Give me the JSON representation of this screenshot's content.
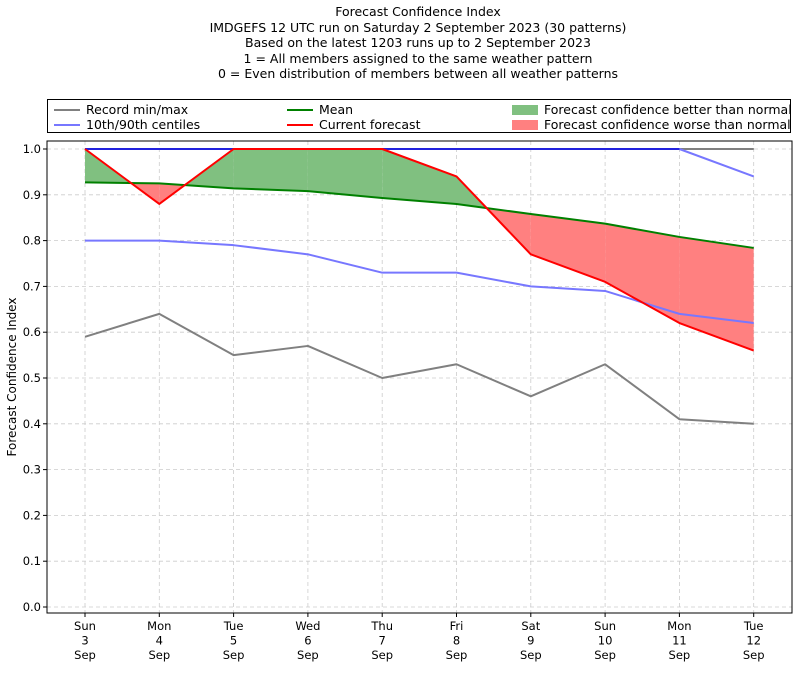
{
  "title_lines": [
    "Forecast Confidence Index",
    "IMDGEFS 12 UTC run on Saturday 2 September 2023 (30 patterns)",
    "Based on the latest 1203 runs up to 2 September 2023",
    "1 = All members assigned to the same weather pattern",
    "0 = Even distribution of members between all weather patterns"
  ],
  "legend": {
    "record": "Record min/max",
    "centiles": "10th/90th centiles",
    "mean": "Mean",
    "current": "Current forecast",
    "better": "Forecast confidence better than normal",
    "worse": "Forecast confidence worse than normal"
  },
  "colors": {
    "record": "#808080",
    "centiles": "#7777ff",
    "centiles_top": "#2222dd",
    "mean": "#008000",
    "current": "#ff0000",
    "better_fill": "#80c080",
    "worse_fill": "#ff8080"
  },
  "chart_data": {
    "type": "line",
    "ylabel": "Forecast Confidence Index",
    "ylim": [
      0,
      1
    ],
    "yticks": [
      "0.0",
      "0.1",
      "0.2",
      "0.3",
      "0.4",
      "0.5",
      "0.6",
      "0.7",
      "0.8",
      "0.9",
      "1.0"
    ],
    "grid": true,
    "legend_position": "top",
    "categories": [
      [
        "Sun",
        "3",
        "Sep"
      ],
      [
        "Mon",
        "4",
        "Sep"
      ],
      [
        "Tue",
        "5",
        "Sep"
      ],
      [
        "Wed",
        "6",
        "Sep"
      ],
      [
        "Thu",
        "7",
        "Sep"
      ],
      [
        "Fri",
        "8",
        "Sep"
      ],
      [
        "Sat",
        "9",
        "Sep"
      ],
      [
        "Sun",
        "10",
        "Sep"
      ],
      [
        "Mon",
        "11",
        "Sep"
      ],
      [
        "Tue",
        "12",
        "Sep"
      ]
    ],
    "series": [
      {
        "name": "Record min/max",
        "role": "record_max",
        "values": [
          1.0,
          1.0,
          1.0,
          1.0,
          1.0,
          1.0,
          1.0,
          1.0,
          1.0,
          1.0
        ]
      },
      {
        "name": "Record min/max",
        "role": "record_min",
        "values": [
          0.59,
          0.64,
          0.55,
          0.57,
          0.5,
          0.53,
          0.46,
          0.53,
          0.41,
          0.4
        ]
      },
      {
        "name": "10th/90th centiles",
        "role": "p90",
        "values": [
          1.0,
          1.0,
          1.0,
          1.0,
          1.0,
          1.0,
          1.0,
          1.0,
          1.0,
          0.94
        ]
      },
      {
        "name": "10th/90th centiles",
        "role": "p10",
        "values": [
          0.8,
          0.8,
          0.79,
          0.77,
          0.73,
          0.73,
          0.7,
          0.69,
          0.64,
          0.62
        ]
      },
      {
        "name": "Mean",
        "role": "mean",
        "values": [
          0.927,
          0.925,
          0.914,
          0.908,
          0.893,
          0.88,
          0.858,
          0.837,
          0.808,
          0.784
        ]
      },
      {
        "name": "Current forecast",
        "role": "current",
        "values": [
          1.0,
          0.88,
          1.0,
          1.0,
          1.0,
          0.94,
          0.77,
          0.71,
          0.62,
          0.56
        ]
      }
    ]
  }
}
